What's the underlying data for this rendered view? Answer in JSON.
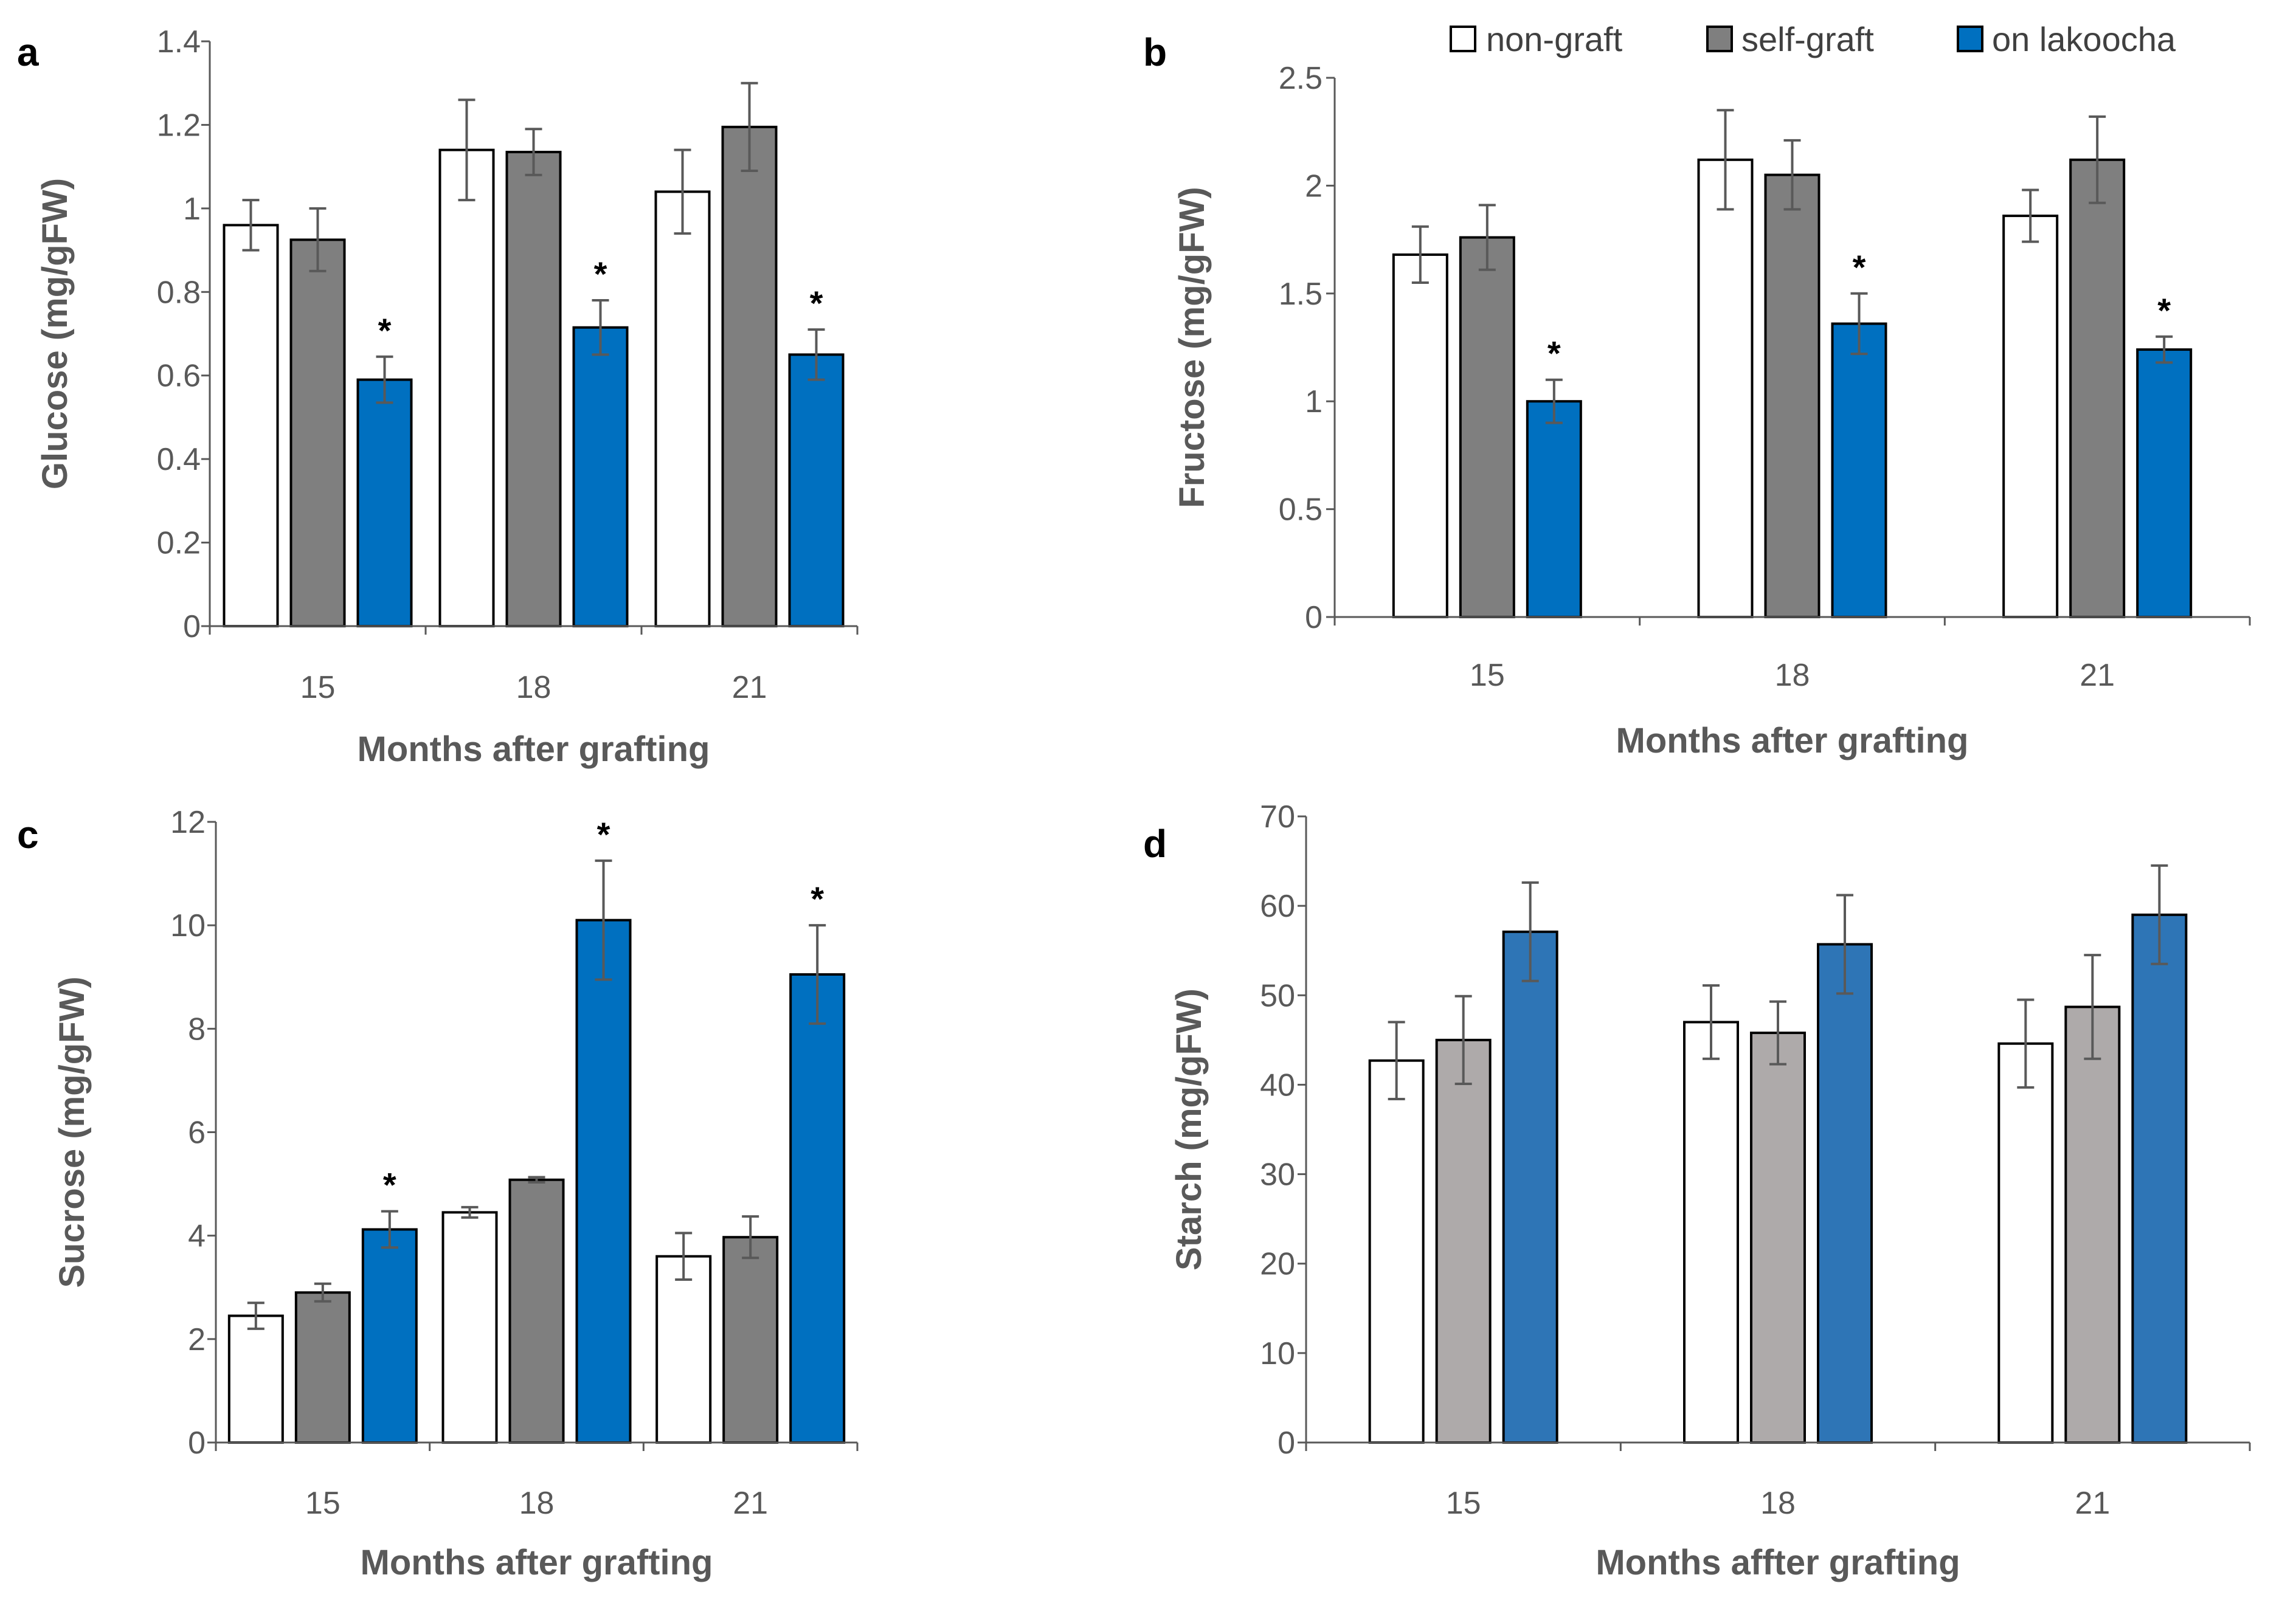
{
  "legend": {
    "entries": [
      {
        "label": "non-graft",
        "color": "#ffffff"
      },
      {
        "label": "self-graft",
        "color": "#7f7f7f"
      },
      {
        "label": "on lakoocha",
        "color": "#0070c0"
      }
    ]
  },
  "chart_data": [
    {
      "panel": "a",
      "type": "bar",
      "xlabel": "Months after grafting",
      "ylabel": "Glucose (mg/gFW)",
      "ylim": [
        0,
        1.4
      ],
      "yticks": [
        "0",
        "0.2",
        "0.4",
        "0.6",
        "0.8",
        "1",
        "1.2",
        "1.4"
      ],
      "categories": [
        "15",
        "18",
        "21"
      ],
      "series": [
        {
          "name": "non-graft",
          "color": "#ffffff",
          "values": [
            0.96,
            1.14,
            1.04
          ],
          "errors": [
            0.06,
            0.12,
            0.1
          ]
        },
        {
          "name": "self-graft",
          "color": "#7f7f7f",
          "values": [
            0.925,
            1.135,
            1.195
          ],
          "errors": [
            0.075,
            0.055,
            0.105
          ]
        },
        {
          "name": "on lakoocha",
          "color": "#0070c0",
          "values": [
            0.59,
            0.715,
            0.65
          ],
          "errors": [
            0.055,
            0.065,
            0.06
          ]
        }
      ],
      "significance": [
        [
          false,
          false,
          true
        ],
        [
          false,
          false,
          true
        ],
        [
          false,
          false,
          true
        ]
      ],
      "annotation": "*"
    },
    {
      "panel": "b",
      "type": "bar",
      "xlabel": "Months after grafting",
      "ylabel": "Fructose (mg/gFW)",
      "ylim": [
        0,
        2.5
      ],
      "yticks": [
        "0",
        "0.5",
        "1",
        "1.5",
        "2",
        "2.5"
      ],
      "categories": [
        "15",
        "18",
        "21"
      ],
      "series": [
        {
          "name": "non-graft",
          "color": "#ffffff",
          "values": [
            1.68,
            2.12,
            1.86
          ],
          "errors": [
            0.13,
            0.23,
            0.12
          ]
        },
        {
          "name": "self-graft",
          "color": "#7f7f7f",
          "values": [
            1.76,
            2.05,
            2.12
          ],
          "errors": [
            0.15,
            0.16,
            0.2
          ]
        },
        {
          "name": "on lakoocha",
          "color": "#0070c0",
          "values": [
            1.0,
            1.36,
            1.24
          ],
          "errors": [
            0.1,
            0.14,
            0.06
          ]
        }
      ],
      "significance": [
        [
          false,
          false,
          true
        ],
        [
          false,
          false,
          true
        ],
        [
          false,
          false,
          true
        ]
      ],
      "annotation": "*"
    },
    {
      "panel": "c",
      "type": "bar",
      "xlabel": "Months after grafting",
      "ylabel": "Sucrose (mg/gFW)",
      "ylim": [
        0,
        12
      ],
      "yticks": [
        "0",
        "2",
        "4",
        "6",
        "8",
        "10",
        "12"
      ],
      "categories": [
        "15",
        "18",
        "21"
      ],
      "series": [
        {
          "name": "non-graft",
          "color": "#ffffff",
          "values": [
            2.45,
            4.45,
            3.6
          ],
          "errors": [
            0.25,
            0.1,
            0.45
          ]
        },
        {
          "name": "self-graft",
          "color": "#7f7f7f",
          "values": [
            2.9,
            5.08,
            3.97
          ],
          "errors": [
            0.17,
            0.05,
            0.4
          ]
        },
        {
          "name": "on lakoocha",
          "color": "#0070c0",
          "values": [
            4.12,
            10.1,
            9.05
          ],
          "errors": [
            0.35,
            1.15,
            0.95
          ]
        }
      ],
      "significance": [
        [
          false,
          false,
          true
        ],
        [
          false,
          false,
          true
        ],
        [
          false,
          false,
          true
        ]
      ],
      "annotation": "*"
    },
    {
      "panel": "d",
      "type": "bar",
      "xlabel": "Months affter grafting",
      "ylabel": "Starch (mg/gFW)",
      "ylim": [
        0,
        70
      ],
      "yticks": [
        "0",
        "10",
        "20",
        "30",
        "40",
        "50",
        "60",
        "70"
      ],
      "categories": [
        "15",
        "18",
        "21"
      ],
      "series": [
        {
          "name": "non-graft",
          "color": "#ffffff",
          "values": [
            42.7,
            47.0,
            44.6
          ],
          "errors": [
            4.3,
            4.1,
            4.9
          ]
        },
        {
          "name": "self-graft",
          "color": "#aeaaaa",
          "values": [
            45.0,
            45.8,
            48.7
          ],
          "errors": [
            4.9,
            3.5,
            5.8
          ]
        },
        {
          "name": "on lakoocha",
          "color": "#2e75b6",
          "values": [
            57.1,
            55.7,
            59.0
          ],
          "errors": [
            5.5,
            5.5,
            5.5
          ]
        }
      ],
      "significance": [
        [
          false,
          false,
          false
        ],
        [
          false,
          false,
          false
        ],
        [
          false,
          false,
          false
        ]
      ],
      "annotation": "*"
    }
  ]
}
